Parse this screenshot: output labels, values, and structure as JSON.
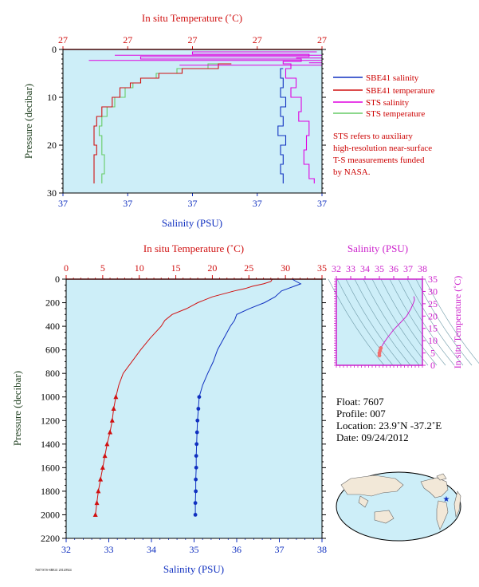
{
  "float_info": {
    "float": "Float:  7607",
    "profile": "Profile:  007",
    "location": "Location:  23.9˚N  -37.2˚E",
    "date": "Date:  09/24/2012"
  },
  "footer": "7607/STS-SBE41 20120924",
  "colors": {
    "sbe41_salinity": "#1030c0",
    "sbe41_temperature": "#d01010",
    "sts_salinity": "#e000e0",
    "sts_temperature": "#66cc66",
    "plot_bg": "#cdeef8",
    "temp_axis": "#d01010",
    "sal_axis": "#1030c0",
    "ts_axis": "#cc22cc",
    "pressure_label": "#204020",
    "note": "#cc0000"
  },
  "chart_data": [
    {
      "id": "near-surface",
      "type": "line",
      "title": "In situ Temperature (˚C)",
      "xlabel": "Salinity (PSU)",
      "ylabel": "Pressure (decibar)",
      "x_ticks_bottom": [
        "37",
        "37",
        "37",
        "37",
        "37"
      ],
      "x_ticks_top": [
        "27",
        "27",
        "27",
        "27",
        "27"
      ],
      "y_ticks": [
        0,
        10,
        20,
        30
      ],
      "ylim": [
        30,
        0
      ],
      "legend_position": "right",
      "legend": [
        "SBE41 salinity",
        "SBE41 temperature",
        "STS salinity",
        "STS temperature"
      ],
      "note": [
        "STS refers to auxiliary",
        "high-resolution near-surface",
        "T-S measurements funded",
        "by NASA."
      ],
      "series": [
        {
          "name": "STS temperature",
          "pressure": [
            3,
            4,
            5,
            6,
            7,
            8,
            10,
            12,
            14,
            16,
            18,
            20,
            22,
            24,
            26,
            28
          ],
          "x_norm": [
            0.61,
            0.56,
            0.44,
            0.36,
            0.3,
            0.27,
            0.24,
            0.2,
            0.17,
            0.15,
            0.14,
            0.15,
            0.15,
            0.16,
            0.16,
            0.15
          ]
        },
        {
          "name": "SBE41 temperature",
          "pressure": [
            3,
            4,
            5,
            6,
            7,
            8,
            10,
            12,
            14,
            16,
            18,
            20,
            22,
            24,
            26,
            28
          ],
          "x_norm": [
            0.65,
            0.6,
            0.46,
            0.37,
            0.3,
            0.26,
            0.22,
            0.19,
            0.15,
            0.13,
            0.12,
            0.12,
            0.13,
            0.12,
            0.12,
            0.12
          ]
        },
        {
          "name": "SBE41 salinity",
          "pressure": [
            4,
            6,
            8,
            10,
            12,
            14,
            16,
            18,
            20,
            22,
            24,
            26,
            28
          ],
          "x_norm": [
            0.85,
            0.84,
            0.85,
            0.84,
            0.86,
            0.84,
            0.85,
            0.83,
            0.86,
            0.84,
            0.85,
            0.84,
            0.85
          ]
        },
        {
          "name": "STS salinity",
          "pressure": [
            0.5,
            1,
            1.5,
            2,
            2.5,
            3,
            4,
            6,
            8,
            10,
            13,
            15,
            18,
            21,
            24,
            27,
            28
          ],
          "x_norm": [
            0.98,
            0.5,
            0.95,
            0.3,
            0.92,
            0.85,
            0.88,
            0.86,
            0.9,
            0.88,
            0.92,
            0.91,
            0.95,
            0.94,
            0.93,
            0.95,
            0.97
          ]
        }
      ]
    },
    {
      "id": "full-profile",
      "type": "line",
      "title": "In situ Temperature (˚C)",
      "xlabel": "Salinity (PSU)",
      "ylabel": "Pressure (decibar)",
      "x_ticks_bottom": [
        "32",
        "33",
        "34",
        "35",
        "36",
        "37",
        "38"
      ],
      "x_ticks_top": [
        "0",
        "5",
        "10",
        "15",
        "20",
        "25",
        "30",
        "35"
      ],
      "y_ticks": [
        0,
        200,
        400,
        600,
        800,
        1000,
        1200,
        1400,
        1600,
        1800,
        2000,
        2200
      ],
      "xlim_salinity": [
        32,
        38
      ],
      "xlim_temperature": [
        0,
        35
      ],
      "ylim": [
        2200,
        0
      ],
      "series": [
        {
          "name": "SBE41 temperature",
          "axis": "temperature",
          "pressure": [
            0,
            20,
            40,
            60,
            80,
            100,
            150,
            200,
            250,
            300,
            350,
            400,
            500,
            600,
            700,
            800,
            900,
            1000,
            1100,
            1200,
            1300,
            1400,
            1500,
            1600,
            1700,
            1800,
            1900,
            2000
          ],
          "values": [
            28.2,
            28.0,
            27.0,
            25.5,
            24.5,
            23.0,
            20.0,
            18.0,
            16.5,
            14.5,
            13.5,
            13.0,
            11.5,
            10.2,
            9.0,
            7.8,
            7.2,
            6.8,
            6.5,
            6.3,
            6.0,
            5.6,
            5.3,
            5.0,
            4.7,
            4.4,
            4.2,
            4.0
          ],
          "markers_from": 1000
        },
        {
          "name": "SBE41 salinity",
          "axis": "salinity",
          "pressure": [
            0,
            20,
            40,
            60,
            80,
            100,
            150,
            200,
            250,
            300,
            350,
            400,
            500,
            600,
            700,
            800,
            900,
            1000,
            1100,
            1200,
            1300,
            1400,
            1500,
            1600,
            1700,
            1800,
            1900,
            2000
          ],
          "values": [
            37.3,
            37.4,
            37.5,
            37.35,
            37.2,
            37.05,
            36.9,
            36.65,
            36.3,
            36.0,
            35.95,
            35.85,
            35.7,
            35.55,
            35.45,
            35.32,
            35.2,
            35.12,
            35.1,
            35.08,
            35.07,
            35.06,
            35.05,
            35.05,
            35.04,
            35.04,
            35.03,
            35.03
          ],
          "markers_from": 1000
        }
      ]
    },
    {
      "id": "ts-diagram",
      "type": "scatter",
      "title": "Salinity (PSU)",
      "ylabel": "In situ Temperature (˚C)",
      "x_ticks_top": [
        "32",
        "33",
        "34",
        "35",
        "36",
        "37",
        "38"
      ],
      "y_ticks": [
        "0",
        "5",
        "10",
        "15",
        "20",
        "25",
        "30",
        "35"
      ],
      "xlim": [
        32,
        38
      ],
      "ylim": [
        0,
        35
      ],
      "points": [
        [
          35.0,
          4.0
        ],
        [
          35.0,
          5.0
        ],
        [
          35.05,
          6.0
        ],
        [
          35.1,
          7.0
        ],
        [
          35.3,
          9.0
        ],
        [
          35.6,
          11.5
        ],
        [
          36.0,
          14.5
        ],
        [
          36.5,
          17.5
        ],
        [
          36.9,
          20.0
        ],
        [
          37.2,
          23.0
        ],
        [
          37.35,
          25.0
        ],
        [
          37.45,
          26.5
        ],
        [
          37.4,
          28.0
        ]
      ]
    }
  ]
}
